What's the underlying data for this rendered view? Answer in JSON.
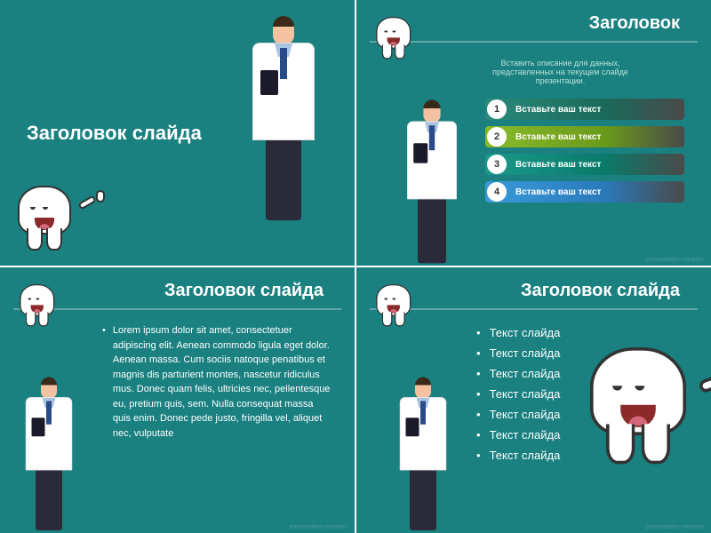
{
  "colors": {
    "bg": "#1a8080",
    "text": "#ffffff",
    "desc": "#b8e0d8"
  },
  "slide1": {
    "title": "Заголовок слайда"
  },
  "slide2": {
    "header": "Заголовок",
    "description": "Вставить описание для данных, представленных на текущем слайде презентации.",
    "items": [
      {
        "num": "1",
        "text": "Вставьте ваш текст",
        "gradient": [
          "#2a8a7a",
          "#1a6a5a",
          "#4a4a4a"
        ]
      },
      {
        "num": "2",
        "text": "Вставьте ваш текст",
        "gradient": [
          "#8aba2a",
          "#6a9a1a",
          "#4a4a4a"
        ]
      },
      {
        "num": "3",
        "text": "Вставьте ваш текст",
        "gradient": [
          "#1a9a8a",
          "#0a7a6a",
          "#4a4a4a"
        ]
      },
      {
        "num": "4",
        "text": "Вставьте ваш текст",
        "gradient": [
          "#3a9ada",
          "#2a7aba",
          "#4a4a4a"
        ]
      }
    ]
  },
  "slide3": {
    "header": "Заголовок слайда",
    "body": "Lorem ipsum dolor sit amet, consectetuer adipiscing elit. Aenean commodo ligula eget dolor. Aenean massa. Cum sociis natoque penatibus et magnis dis parturient montes, nascetur ridiculus mus. Donec quam felis, ultricies nec, pellentesque eu, pretium quis, sem. Nulla consequat massa quis enim. Donec pede justo, fringilla vel, aliquet nec, vulputate"
  },
  "slide4": {
    "header": "Заголовок слайда",
    "items": [
      "Текст слайда",
      "Текст слайда",
      "Текст слайда",
      "Текст слайда",
      "Текст слайда",
      "Текст слайда",
      "Текст слайда"
    ]
  },
  "watermark": "presentation-creation"
}
